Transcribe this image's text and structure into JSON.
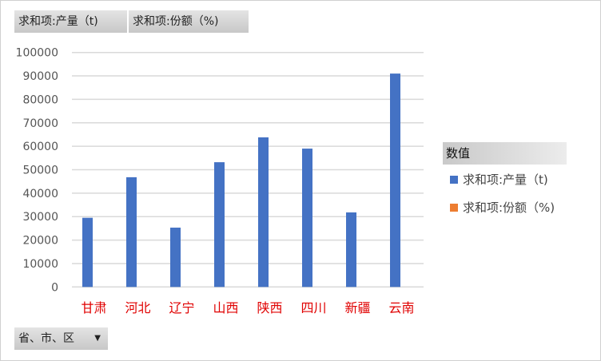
{
  "field_buttons": {
    "value1": "求和项:产量（t)",
    "value2": "求和项:份额（%)",
    "axis_field": "省、市、区"
  },
  "legend": {
    "title": "数值",
    "items": [
      "求和项:产量（t)",
      "求和项:份额（%)"
    ]
  },
  "chart_data": {
    "type": "bar",
    "categories": [
      "甘肃",
      "河北",
      "辽宁",
      "山西",
      "陕西",
      "四川",
      "新疆",
      "云南"
    ],
    "series": [
      {
        "name": "求和项:产量（t)",
        "color": "#4472c4",
        "values": [
          29500,
          46800,
          25300,
          53200,
          63800,
          59000,
          31800,
          91000
        ]
      },
      {
        "name": "求和项:份额（%)",
        "color": "#ed7d31",
        "values": [
          0,
          0,
          0,
          0,
          0,
          0,
          0,
          0
        ]
      }
    ],
    "ylim": [
      0,
      100000
    ],
    "yticks": [
      0,
      10000,
      20000,
      30000,
      40000,
      50000,
      60000,
      70000,
      80000,
      90000,
      100000
    ],
    "grid": true,
    "legend_position": "right",
    "category_label_color": "#e00000"
  }
}
